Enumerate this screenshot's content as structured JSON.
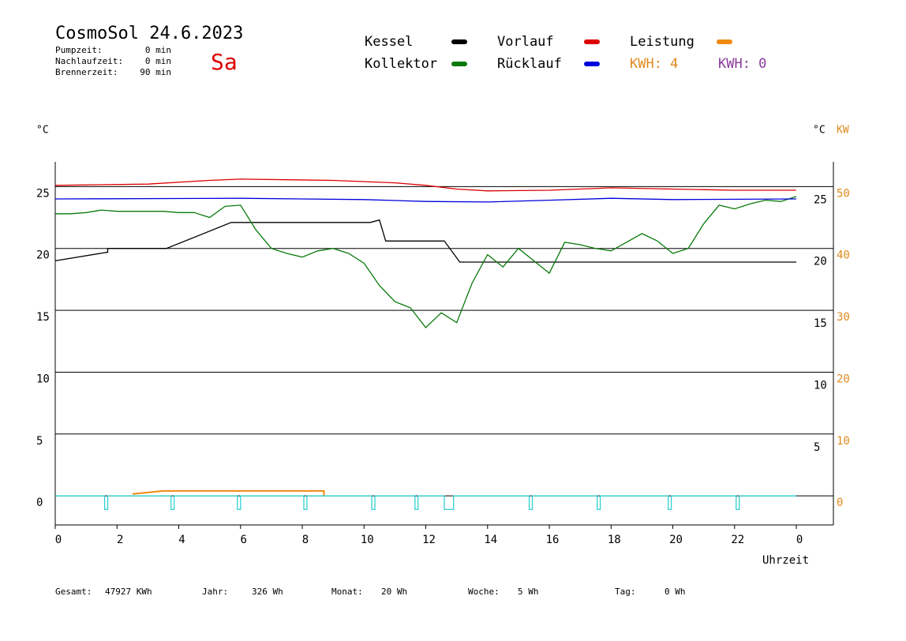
{
  "chart_data": {
    "type": "line",
    "title": "CosmoSol 24.6.2023",
    "weekday": "Sa",
    "stats": [
      {
        "label": "Pumpzeit:",
        "value": "0 min"
      },
      {
        "label": "Nachlaufzeit:",
        "value": "0 min"
      },
      {
        "label": "Brennerzeit:",
        "value": "90 min"
      }
    ],
    "kwh_labels": [
      {
        "text": "KWH: 4",
        "color": "#e08a1c"
      },
      {
        "text": "KWH: 0",
        "color": "#8a3a9a"
      }
    ],
    "y_unit": "°C",
    "y_unit_right": "°C",
    "y2_unit": "KW",
    "xlabel": "Uhrzeit",
    "xlim": [
      0,
      25.2
    ],
    "xticks": [
      0,
      2,
      4,
      6,
      8,
      10,
      12,
      14,
      16,
      18,
      20,
      22,
      {
        "value": 24,
        "label": "0"
      }
    ],
    "ylim": [
      -2.35,
      27
    ],
    "yticks": [
      0,
      5,
      10,
      15,
      20,
      25
    ],
    "yticks_right": [
      5,
      10,
      15,
      20,
      25
    ],
    "y2lim": [
      -4.7,
      54
    ],
    "y2ticks": [
      0,
      10,
      20,
      30,
      40,
      50
    ],
    "grid": true,
    "series": [
      {
        "name": "Kessel",
        "color": "#000000",
        "x": [
          0,
          1.7,
          1.7,
          3.6,
          5.7,
          10.2,
          10.5,
          10.7,
          12.6,
          13.1,
          24
        ],
        "values": [
          19.0,
          19.7,
          20.0,
          20.0,
          22.1,
          22.1,
          22.3,
          20.6,
          20.6,
          18.9,
          18.9
        ]
      },
      {
        "name": "Kollektor",
        "color": "#0a7a0a",
        "x": [
          0,
          0.5,
          1,
          1.5,
          2,
          2.5,
          3,
          3.5,
          4,
          4.5,
          5,
          5.5,
          6,
          6.5,
          7,
          7.5,
          8,
          8.5,
          9,
          9.5,
          10,
          10.5,
          11,
          11.5,
          12,
          12.5,
          13,
          13.5,
          14,
          14.5,
          15,
          15.5,
          16,
          16.5,
          17,
          17.5,
          18,
          18.5,
          19,
          19.5,
          20,
          20.5,
          21,
          21.5,
          22,
          22.5,
          23,
          23.5,
          24
        ],
        "values": [
          22.8,
          22.8,
          22.9,
          23.1,
          23.0,
          23.0,
          23.0,
          23.0,
          22.9,
          22.9,
          22.5,
          23.4,
          23.5,
          21.5,
          20.0,
          19.6,
          19.3,
          19.8,
          20.0,
          19.6,
          18.8,
          17.0,
          15.7,
          15.2,
          13.6,
          14.8,
          14.0,
          17.2,
          19.5,
          18.5,
          20.0,
          19.0,
          18.0,
          20.5,
          20.3,
          20.0,
          19.8,
          20.5,
          21.2,
          20.6,
          19.6,
          20.0,
          22.0,
          23.5,
          23.2,
          23.6,
          23.9,
          23.8,
          24.2
        ]
      },
      {
        "name": "Vorlauf",
        "color": "#dd0000",
        "x": [
          0,
          3,
          5,
          6,
          9,
          11,
          12,
          13,
          14,
          16,
          18,
          20,
          22,
          24
        ],
        "values": [
          25.1,
          25.2,
          25.5,
          25.6,
          25.5,
          25.3,
          25.1,
          24.8,
          24.65,
          24.7,
          24.9,
          24.8,
          24.7,
          24.7
        ]
      },
      {
        "name": "Rücklauf",
        "color": "#0000dd",
        "x": [
          0,
          6,
          10,
          12,
          14,
          16,
          18,
          20,
          24
        ],
        "values": [
          24.0,
          24.05,
          23.95,
          23.8,
          23.75,
          23.9,
          24.05,
          23.95,
          24.0
        ]
      },
      {
        "name": "Leistung",
        "color": "#f08a10",
        "axis": "y2",
        "x": [
          2.5,
          2.7,
          3.5,
          8.7,
          8.7
        ],
        "values": [
          0.3,
          0.4,
          0.8,
          0.8,
          0
        ]
      },
      {
        "color": "#30d0d0",
        "x": [
          0,
          1.6,
          1.6,
          1.7,
          1.7,
          3.75,
          3.75,
          3.85,
          3.85,
          5.9,
          5.9,
          6.0,
          6.0,
          8.05,
          8.05,
          8.15,
          8.15,
          10.25,
          10.25,
          10.35,
          10.35,
          11.65,
          11.65,
          11.75,
          11.75,
          12.6,
          12.6,
          12.9,
          12.9,
          15.35,
          15.35,
          15.45,
          15.45,
          17.55,
          17.55,
          17.65,
          17.65,
          19.85,
          19.85,
          19.95,
          19.95,
          22.05,
          22.05,
          22.15,
          22.15,
          24
        ],
        "values": [
          0,
          0,
          -1.1,
          -1.1,
          0,
          0,
          -1.1,
          -1.1,
          0,
          0,
          -1.1,
          -1.1,
          0,
          0,
          -1.1,
          -1.1,
          0,
          0,
          -1.1,
          -1.1,
          0,
          0,
          -1.1,
          -1.1,
          0,
          0,
          -1.1,
          -1.1,
          0,
          0,
          -1.1,
          -1.1,
          0,
          0,
          -1.1,
          -1.1,
          0,
          0,
          -1.1,
          -1.1,
          0,
          0,
          -1.1,
          -1.1,
          0,
          0
        ]
      }
    ],
    "footer": [
      {
        "label": "Gesamt:",
        "value": "47927 KWh"
      },
      {
        "label": "Jahr:",
        "value": "326 Wh"
      },
      {
        "label": "Monat:",
        "value": "20 Wh"
      },
      {
        "label": "Woche:",
        "value": "5 Wh"
      },
      {
        "label": "Tag:",
        "value": "0 Wh"
      }
    ]
  }
}
